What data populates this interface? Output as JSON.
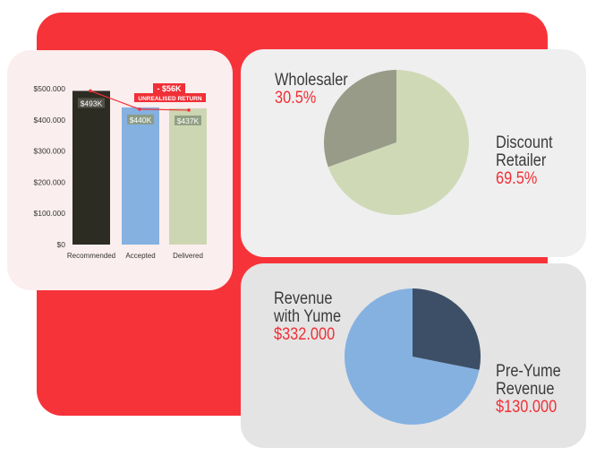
{
  "colors": {
    "background_red": "#f7333a",
    "accent_red": "#f02f36",
    "bar_recommended": "#2d2c22",
    "bar_accepted": "#85b1e1",
    "bar_delivered": "#cdd6b3",
    "pie1_wholesaler": "#989b88",
    "pie1_discount_retailer": "#cfd9b6",
    "pie2_with_yume": "#85b1e1",
    "pie2_pre_yume": "#3c4f66"
  },
  "bar_chart": {
    "annotation_value": "- $56K",
    "annotation_label": "UNREALISED RETURN"
  },
  "pie1": {
    "wholesaler_label": "Wholesaler",
    "wholesaler_value": "30.5%",
    "retailer_label_line1": "Discount",
    "retailer_label_line2": "Retailer",
    "retailer_value": "69.5%"
  },
  "pie2": {
    "with_yume_line1": "Revenue",
    "with_yume_line2": "with Yume",
    "with_yume_value": "$332.000",
    "pre_yume_line1": "Pre-Yume",
    "pre_yume_line2": "Revenue",
    "pre_yume_value": "$130.000"
  },
  "chart_data": [
    {
      "type": "bar",
      "categories": [
        "Recommended",
        "Accepted",
        "Delivered"
      ],
      "values": [
        493,
        440,
        437
      ],
      "data_labels": [
        "$493K",
        "$440K",
        "$437K"
      ],
      "yticks": [
        "$0",
        "$100.000",
        "$200.000",
        "$300.000",
        "$400.000",
        "$500.000"
      ],
      "ylim": [
        0,
        500
      ],
      "grid": false
    },
    {
      "type": "pie",
      "labels": [
        "Wholesaler",
        "Discount Retailer"
      ],
      "values": [
        30.5,
        69.5
      ]
    },
    {
      "type": "pie",
      "labels": [
        "Revenue with Yume",
        "Pre-Yume Revenue"
      ],
      "values": [
        332000,
        130000
      ]
    }
  ]
}
